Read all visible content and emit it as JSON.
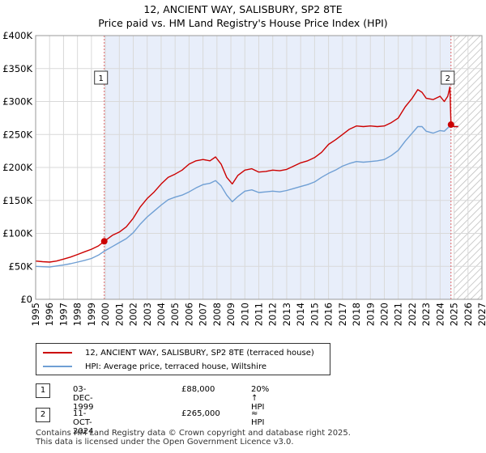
{
  "chart_data": {
    "type": "line",
    "title": "12, ANCIENT WAY, SALISBURY, SP2 8TE",
    "subtitle": "Price paid vs. HM Land Registry's House Price Index (HPI)",
    "xlim": [
      1995,
      2027
    ],
    "ylim": [
      0,
      400000
    ],
    "x_ticks": [
      "1995",
      "1996",
      "1997",
      "1998",
      "1999",
      "2000",
      "2001",
      "2002",
      "2003",
      "2004",
      "2005",
      "2006",
      "2007",
      "2008",
      "2009",
      "2010",
      "2011",
      "2012",
      "2013",
      "2014",
      "2015",
      "2016",
      "2017",
      "2018",
      "2019",
      "2020",
      "2021",
      "2022",
      "2023",
      "2024",
      "2025",
      "2026",
      "2027"
    ],
    "y_ticks": [
      {
        "value": 0,
        "label": "£0"
      },
      {
        "value": 50000,
        "label": "£50K"
      },
      {
        "value": 100000,
        "label": "£100K"
      },
      {
        "value": 150000,
        "label": "£150K"
      },
      {
        "value": 200000,
        "label": "£200K"
      },
      {
        "value": 250000,
        "label": "£250K"
      },
      {
        "value": 300000,
        "label": "£300K"
      },
      {
        "value": 350000,
        "label": "£350K"
      },
      {
        "value": 400000,
        "label": "£400K"
      }
    ],
    "grid": true,
    "ownership_period": [
      1999.92,
      2024.78
    ],
    "future_period_start": 2025.0,
    "series": [
      {
        "name": "12, ANCIENT WAY, SALISBURY, SP2 8TE (terraced house)",
        "color": "#cc0000",
        "x": [
          1995.0,
          1995.5,
          1996.0,
          1996.5,
          1997.0,
          1997.5,
          1998.0,
          1998.5,
          1999.0,
          1999.5,
          1999.92,
          2000.5,
          2001.0,
          2001.5,
          2002.0,
          2002.5,
          2003.0,
          2003.5,
          2004.0,
          2004.5,
          2005.0,
          2005.5,
          2006.0,
          2006.5,
          2007.0,
          2007.5,
          2007.9,
          2008.3,
          2008.7,
          2009.1,
          2009.5,
          2010.0,
          2010.5,
          2011.0,
          2011.5,
          2012.0,
          2012.5,
          2013.0,
          2013.5,
          2014.0,
          2014.5,
          2015.0,
          2015.5,
          2016.0,
          2016.5,
          2017.0,
          2017.5,
          2018.0,
          2018.5,
          2019.0,
          2019.5,
          2020.0,
          2020.5,
          2021.0,
          2021.5,
          2022.0,
          2022.4,
          2022.7,
          2023.0,
          2023.5,
          2024.0,
          2024.3,
          2024.55,
          2024.7,
          2024.78,
          2025.0,
          2025.3
        ],
        "y": [
          58000,
          57000,
          56500,
          58000,
          61000,
          64000,
          68000,
          72000,
          76000,
          81000,
          88000,
          97000,
          102000,
          110000,
          123000,
          140000,
          153000,
          163000,
          175000,
          185000,
          190000,
          196000,
          205000,
          210000,
          212000,
          210000,
          216000,
          205000,
          185000,
          175000,
          188000,
          196000,
          198000,
          193000,
          194000,
          196000,
          195000,
          197000,
          202000,
          207000,
          210000,
          215000,
          223000,
          235000,
          242000,
          250000,
          258000,
          263000,
          262000,
          263000,
          262000,
          263000,
          268000,
          275000,
          292000,
          305000,
          318000,
          314000,
          305000,
          303000,
          308000,
          300000,
          308000,
          322000,
          265000,
          262000,
          262000
        ]
      },
      {
        "name": "HPI: Average price, terraced house, Wiltshire",
        "color": "#6f9fd4",
        "x": [
          1995.0,
          1995.5,
          1996.0,
          1996.5,
          1997.0,
          1997.5,
          1998.0,
          1998.5,
          1999.0,
          1999.5,
          1999.92,
          2000.5,
          2001.0,
          2001.5,
          2002.0,
          2002.5,
          2003.0,
          2003.5,
          2004.0,
          2004.5,
          2005.0,
          2005.5,
          2006.0,
          2006.5,
          2007.0,
          2007.5,
          2007.9,
          2008.3,
          2008.7,
          2009.1,
          2009.5,
          2010.0,
          2010.5,
          2011.0,
          2011.5,
          2012.0,
          2012.5,
          2013.0,
          2013.5,
          2014.0,
          2014.5,
          2015.0,
          2015.5,
          2016.0,
          2016.5,
          2017.0,
          2017.5,
          2018.0,
          2018.5,
          2019.0,
          2019.5,
          2020.0,
          2020.5,
          2021.0,
          2021.5,
          2022.0,
          2022.4,
          2022.7,
          2023.0,
          2023.5,
          2024.0,
          2024.3,
          2024.55,
          2024.78,
          2025.0,
          2025.3
        ],
        "y": [
          50000,
          49500,
          49000,
          50500,
          52000,
          54000,
          56500,
          59000,
          62000,
          67000,
          73000,
          80000,
          86000,
          92000,
          101000,
          114000,
          125000,
          134000,
          143000,
          151000,
          155000,
          158000,
          163000,
          169000,
          174000,
          176000,
          180000,
          172000,
          158000,
          148000,
          156000,
          164000,
          166000,
          162000,
          163000,
          164000,
          163000,
          165000,
          168000,
          171000,
          174000,
          178000,
          185000,
          191000,
          196000,
          202000,
          206000,
          209000,
          208000,
          209000,
          210000,
          212000,
          218000,
          226000,
          240000,
          252000,
          262000,
          262000,
          255000,
          252000,
          256000,
          255000,
          260000,
          265000,
          262000,
          262000
        ]
      }
    ],
    "markers": [
      {
        "label": "1",
        "x": 1999.92,
        "y": 88000
      },
      {
        "label": "2",
        "x": 2024.78,
        "y": 265000
      }
    ]
  },
  "legend": {
    "items": [
      {
        "label": "12, ANCIENT WAY, SALISBURY, SP2 8TE (terraced house)",
        "color": "#cc0000"
      },
      {
        "label": "HPI: Average price, terraced house, Wiltshire",
        "color": "#6f9fd4"
      }
    ]
  },
  "sales": [
    {
      "num": "1",
      "date": "03-DEC-1999",
      "price": "£88,000",
      "relation": "20% ↑ HPI"
    },
    {
      "num": "2",
      "date": "11-OCT-2024",
      "price": "£265,000",
      "relation": "≈ HPI"
    }
  ],
  "footer": {
    "line1": "Contains HM Land Registry data © Crown copyright and database right 2025.",
    "line2": "This data is licensed under the Open Government Licence v3.0."
  }
}
